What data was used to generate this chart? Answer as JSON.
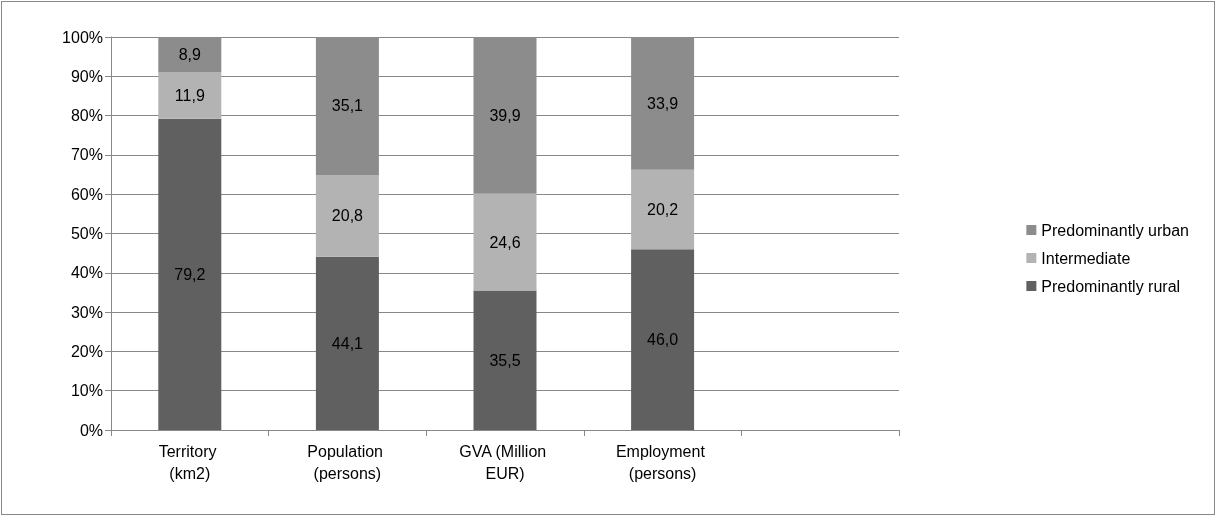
{
  "chart_data": {
    "type": "bar",
    "stacked": true,
    "categories": [
      "Territory (km2)",
      "Population (persons)",
      "GVA (Million EUR)",
      "Employment (persons)",
      null
    ],
    "series": [
      {
        "name": "Predominantly rural",
        "color": "#606060",
        "values": [
          79.2,
          44.1,
          35.5,
          46.0,
          null
        ],
        "value_labels": [
          "79,2",
          "44,1",
          "35,5",
          "46,0",
          null
        ]
      },
      {
        "name": "Intermediate",
        "color": "#b3b3b3",
        "values": [
          11.9,
          20.8,
          24.6,
          20.2,
          null
        ],
        "value_labels": [
          "11,9",
          "20,8",
          "24,6",
          "20,2",
          null
        ]
      },
      {
        "name": "Predominantly urban",
        "color": "#8c8c8c",
        "values": [
          8.9,
          35.1,
          39.9,
          33.9,
          null
        ],
        "value_labels": [
          "8,9",
          "35,1",
          "39,9",
          "33,9",
          null
        ]
      }
    ],
    "ylim": [
      0,
      100
    ],
    "yticks": [
      {
        "value": 0,
        "label": "0%"
      },
      {
        "value": 10,
        "label": "10%"
      },
      {
        "value": 20,
        "label": "20%"
      },
      {
        "value": 30,
        "label": "30%"
      },
      {
        "value": 40,
        "label": "40%"
      },
      {
        "value": 50,
        "label": "50%"
      },
      {
        "value": 60,
        "label": "60%"
      },
      {
        "value": 70,
        "label": "70%"
      },
      {
        "value": 80,
        "label": "80%"
      },
      {
        "value": 90,
        "label": "90%"
      },
      {
        "value": 100,
        "label": "100%"
      }
    ],
    "grid": "y",
    "legend": "right"
  }
}
